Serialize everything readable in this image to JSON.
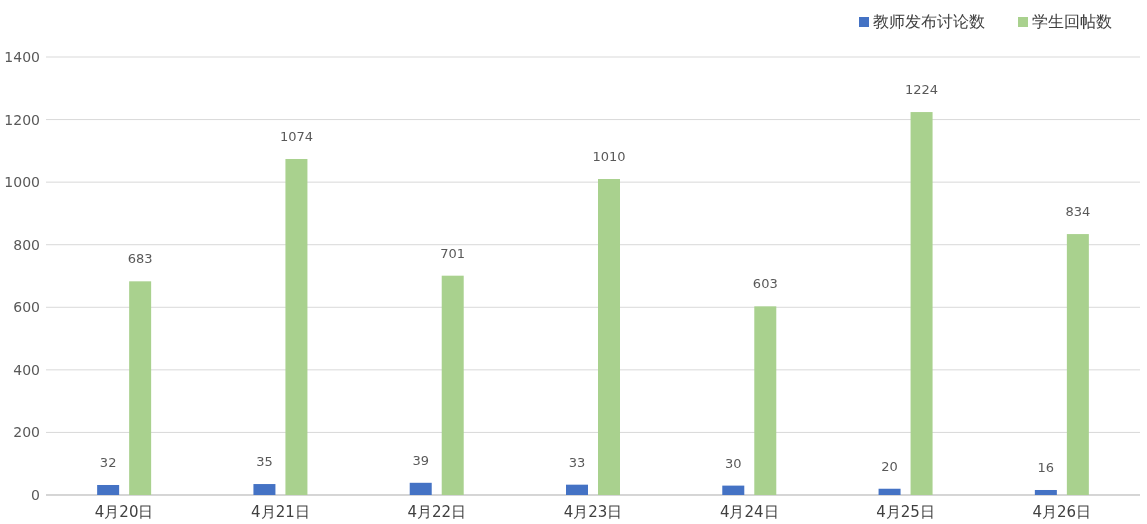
{
  "chart_data": {
    "type": "bar",
    "categories": [
      "4月20日",
      "4月21日",
      "4月22日",
      "4月23日",
      "4月24日",
      "4月25日",
      "4月26日"
    ],
    "series": [
      {
        "name": "教师发布讨论数",
        "color": "#4472c4",
        "values": [
          32,
          35,
          39,
          33,
          30,
          20,
          16
        ]
      },
      {
        "name": "学生回帖数",
        "color": "#a9d18e",
        "values": [
          683,
          1074,
          701,
          1010,
          603,
          1224,
          834
        ]
      }
    ],
    "ylim": [
      0,
      1400
    ],
    "yticks": [
      0,
      200,
      400,
      600,
      800,
      1000,
      1200,
      1400
    ],
    "grid": "y",
    "legend": "top right",
    "data_labels": true
  }
}
